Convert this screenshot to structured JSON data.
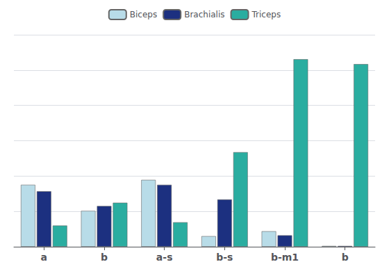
{
  "chart_data": {
    "type": "bar",
    "categories": [
      "a",
      "b",
      "a-s",
      "b-s",
      "b-m1",
      "b"
    ],
    "series": [
      {
        "name": "Biceps",
        "color": "#b8dce8",
        "values": [
          3.8,
          2.2,
          4.1,
          0.65,
          0.95,
          0.05
        ]
      },
      {
        "name": "Brachialis",
        "color": "#1c3080",
        "values": [
          3.4,
          2.5,
          3.8,
          2.9,
          0.7,
          0.05
        ]
      },
      {
        "name": "Triceps",
        "color": "#2aada0",
        "values": [
          1.3,
          2.7,
          1.5,
          5.8,
          11.5,
          11.2
        ]
      }
    ],
    "ylim": [
      0,
      13
    ],
    "yticks": [
      0,
      2.1666666666666665,
      4.333333333333333,
      6.5,
      8.666666666666666,
      10.833333333333334,
      13
    ],
    "grid": true,
    "legend": "upper center",
    "tick_labels": "x"
  }
}
